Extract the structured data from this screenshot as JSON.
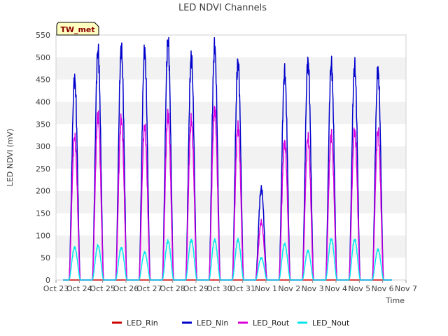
{
  "chart_data": {
    "type": "line",
    "title": "LED NDVI Channels",
    "xlabel": "Time",
    "ylabel": "LED NDVI (mV)",
    "ylim": [
      0,
      550
    ],
    "yticks": [
      0,
      50,
      100,
      150,
      200,
      250,
      300,
      350,
      400,
      450,
      500,
      550
    ],
    "xticks": [
      "Oct 23",
      "Oct 24",
      "Oct 25",
      "Oct 26",
      "Oct 27",
      "Oct 28",
      "Oct 29",
      "Oct 30",
      "Oct 31",
      "Nov 1",
      "Nov 2",
      "Nov 3",
      "Nov 4",
      "Nov 5",
      "Nov 6",
      "Nov 7"
    ],
    "xrange_days": [
      0,
      15
    ],
    "grid": "horizontal bands",
    "legend_position": "bottom",
    "site_tag": "TW_met",
    "day_centers": [
      0.8,
      1.8,
      2.8,
      3.8,
      4.8,
      5.8,
      6.8,
      7.8,
      8.8,
      9.8,
      10.8,
      11.8,
      12.8,
      13.8
    ],
    "series": [
      {
        "name": "LED_Rin",
        "color": "#cc0000",
        "daily_peaks": [
          0,
          0,
          0,
          0,
          0,
          0,
          0,
          0,
          0,
          0,
          0,
          0,
          0,
          0
        ]
      },
      {
        "name": "LED_Nin",
        "color": "#0000cc",
        "daily_peaks": [
          450,
          515,
          520,
          513,
          537,
          501,
          523,
          489,
          205,
          465,
          490,
          485,
          480,
          470
        ]
      },
      {
        "name": "LED_Rout",
        "color": "#dd00dd",
        "daily_peaks": [
          320,
          370,
          360,
          345,
          372,
          358,
          385,
          345,
          130,
          310,
          320,
          325,
          335,
          333
        ]
      },
      {
        "name": "LED_Nout",
        "color": "#00e5ee",
        "daily_peaks": [
          73,
          77,
          72,
          62,
          87,
          90,
          90,
          90,
          50,
          81,
          65,
          92,
          90,
          68
        ]
      }
    ]
  }
}
